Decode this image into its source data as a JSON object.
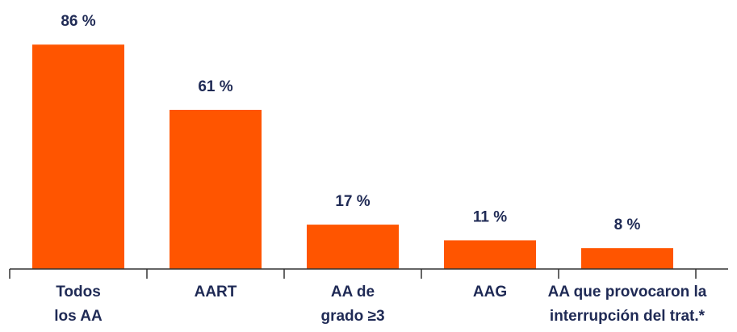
{
  "chart_data": {
    "type": "bar",
    "categories": [
      [
        "Todos",
        "los AA"
      ],
      [
        "AART"
      ],
      [
        "AA de",
        "grado ≥3"
      ],
      [
        "AAG"
      ],
      [
        "AA que provocaron la",
        "interrupción del trat.*"
      ]
    ],
    "values": [
      86,
      61,
      17,
      11,
      8
    ],
    "value_labels": [
      "86 %",
      "61 %",
      "17 %",
      "11 %",
      "8 %"
    ],
    "color": "#ff5500",
    "ylim": [
      0,
      100
    ]
  }
}
